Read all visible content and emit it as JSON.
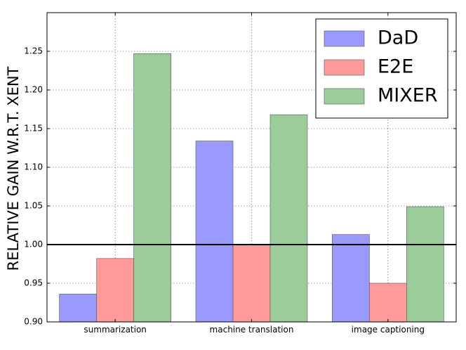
{
  "chart_data": {
    "type": "bar",
    "title": "",
    "xlabel": "",
    "ylabel": "RELATIVE  GAIN  W.R.T.  XENT",
    "categories": [
      "summarization",
      "machine translation",
      "image captioning"
    ],
    "series": [
      {
        "name": "DaD",
        "values": [
          0.936,
          1.134,
          1.013
        ],
        "color": "#9a9afe"
      },
      {
        "name": "E2E",
        "values": [
          0.982,
          1.0,
          0.95
        ],
        "color": "#fe9a9a"
      },
      {
        "name": "MIXER",
        "values": [
          1.247,
          1.168,
          1.049
        ],
        "color": "#9acd9a"
      }
    ],
    "ylim": [
      0.9,
      1.3
    ],
    "yticks": [
      "0.90",
      "0.95",
      "1.00",
      "1.05",
      "1.10",
      "1.15",
      "1.20",
      "1.25"
    ],
    "reference_line": 1.0,
    "grid": true,
    "legend_position": "top-right"
  }
}
